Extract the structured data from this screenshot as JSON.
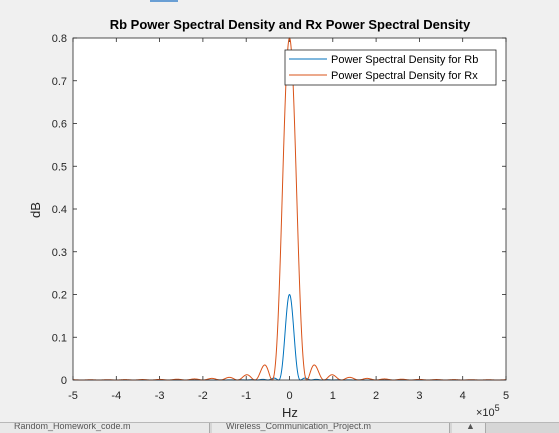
{
  "chart_data": {
    "type": "line",
    "title": "Rb Power Spectral Density and Rx Power Spectral Density",
    "xlabel": "Hz",
    "ylabel": "dB",
    "x_exponent_label": "×10",
    "x_exponent_power": "5",
    "xlim": [
      -5,
      5
    ],
    "ylim": [
      0,
      0.8
    ],
    "xticks": [
      "-5",
      "-4",
      "-3",
      "-2",
      "-1",
      "0",
      "1",
      "2",
      "3",
      "4",
      "5"
    ],
    "yticks": [
      "0",
      "0.1",
      "0.2",
      "0.3",
      "0.4",
      "0.5",
      "0.6",
      "0.7",
      "0.8"
    ],
    "grid": false,
    "legend_position": "top-right",
    "series": [
      {
        "name": "Power Spectral Density for Rb",
        "color": "#0072bd",
        "peak": 0.2,
        "main_lobe_halfwidth": 0.25,
        "sidelobe_level": 0.0045
      },
      {
        "name": "Power Spectral Density for Rx",
        "color": "#d95319",
        "peak": 0.8,
        "main_lobe_halfwidth": 0.4,
        "sidelobe_level": 0.035
      }
    ]
  },
  "taskbar": {
    "tab1": "Random_Homework_code.m",
    "tab2": "Wireless_Communication_Project.m",
    "tab3": "▲"
  }
}
